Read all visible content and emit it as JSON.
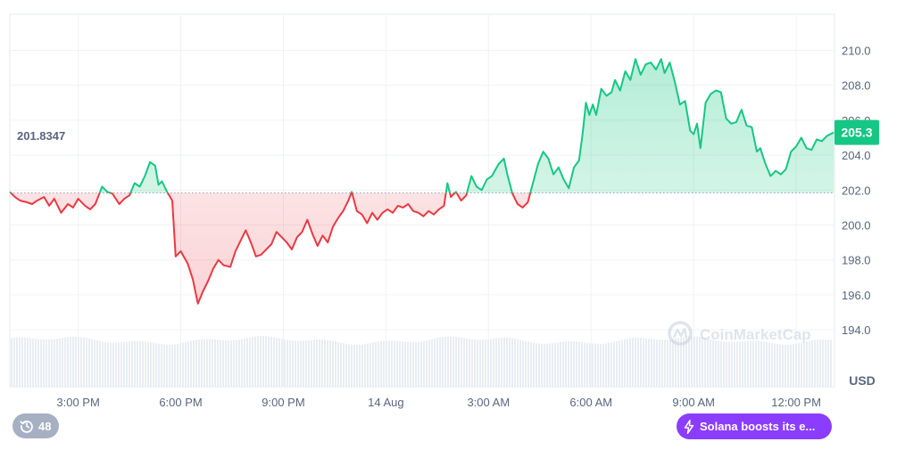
{
  "colors": {
    "up": "#16c784",
    "down": "#ea3943",
    "price_tag_bg": "#16c784",
    "news_pill_bg": "#8b3dff",
    "history_badge_bg": "#a6b0c3",
    "grid": "#eff2f5",
    "axis_text": "#58667e"
  },
  "watermark": "CoinMarketCap",
  "history_badge": {
    "icon": "history-icon",
    "count": "48"
  },
  "news_pill": {
    "icon": "lightning-icon",
    "label": "Solana boosts its e..."
  },
  "chart_data": {
    "type": "area",
    "baseline": 201.8347,
    "baseline_label": "201.8347",
    "current_price_label": "205.3",
    "currency_label": "USD",
    "ylim": [
      193.0,
      211.5
    ],
    "y_ticks": [
      194.0,
      196.0,
      198.0,
      200.0,
      202.0,
      204.0,
      206.0,
      208.0,
      210.0
    ],
    "y_tick_labels": [
      "194.0",
      "196.0",
      "198.0",
      "200.0",
      "202.0",
      "204.0",
      "206.0",
      "208.0",
      "210.0"
    ],
    "x_range_hours": [
      13.0,
      37.12
    ],
    "x_ticks": [
      {
        "label": "3:00 PM",
        "hour": 15
      },
      {
        "label": "6:00 PM",
        "hour": 18
      },
      {
        "label": "9:00 PM",
        "hour": 21
      },
      {
        "label": "14 Aug",
        "hour": 24
      },
      {
        "label": "3:00 AM",
        "hour": 27
      },
      {
        "label": "6:00 AM",
        "hour": 30
      },
      {
        "label": "9:00 AM",
        "hour": 33
      },
      {
        "label": "12:00 PM",
        "hour": 36
      }
    ],
    "series": [
      {
        "points": [
          [
            13.0,
            201.9
          ],
          [
            13.15,
            201.6
          ],
          [
            13.3,
            201.4
          ],
          [
            13.5,
            201.3
          ],
          [
            13.65,
            201.2
          ],
          [
            13.8,
            201.4
          ],
          [
            14.0,
            201.6
          ],
          [
            14.15,
            201.1
          ],
          [
            14.3,
            201.5
          ],
          [
            14.5,
            200.7
          ],
          [
            14.7,
            201.2
          ],
          [
            14.85,
            201.0
          ],
          [
            15.0,
            201.5
          ],
          [
            15.2,
            201.1
          ],
          [
            15.35,
            200.9
          ],
          [
            15.5,
            201.2
          ],
          [
            15.7,
            202.2
          ],
          [
            15.85,
            201.9
          ],
          [
            16.0,
            201.8
          ],
          [
            16.2,
            201.2
          ],
          [
            16.35,
            201.5
          ],
          [
            16.5,
            201.7
          ],
          [
            16.65,
            202.4
          ],
          [
            16.8,
            202.2
          ],
          [
            16.95,
            202.8
          ],
          [
            17.1,
            203.6
          ],
          [
            17.25,
            203.4
          ],
          [
            17.35,
            202.3
          ],
          [
            17.45,
            202.5
          ],
          [
            17.6,
            201.9
          ],
          [
            17.75,
            201.4
          ],
          [
            17.85,
            198.2
          ],
          [
            18.0,
            198.5
          ],
          [
            18.2,
            197.8
          ],
          [
            18.35,
            196.9
          ],
          [
            18.5,
            195.5
          ],
          [
            18.65,
            196.2
          ],
          [
            18.8,
            196.8
          ],
          [
            18.95,
            197.5
          ],
          [
            19.1,
            198.0
          ],
          [
            19.25,
            197.7
          ],
          [
            19.45,
            197.6
          ],
          [
            19.6,
            198.5
          ],
          [
            19.75,
            199.1
          ],
          [
            19.9,
            199.7
          ],
          [
            20.05,
            199.0
          ],
          [
            20.2,
            198.2
          ],
          [
            20.35,
            198.3
          ],
          [
            20.5,
            198.6
          ],
          [
            20.65,
            198.9
          ],
          [
            20.8,
            199.6
          ],
          [
            20.95,
            199.3
          ],
          [
            21.1,
            199.0
          ],
          [
            21.25,
            198.6
          ],
          [
            21.4,
            199.3
          ],
          [
            21.55,
            199.6
          ],
          [
            21.7,
            200.3
          ],
          [
            21.85,
            199.5
          ],
          [
            22.0,
            198.8
          ],
          [
            22.15,
            199.4
          ],
          [
            22.3,
            199.0
          ],
          [
            22.45,
            199.9
          ],
          [
            22.6,
            200.4
          ],
          [
            22.75,
            200.8
          ],
          [
            22.9,
            201.4
          ],
          [
            23.0,
            201.9
          ],
          [
            23.15,
            200.8
          ],
          [
            23.3,
            200.6
          ],
          [
            23.45,
            200.1
          ],
          [
            23.6,
            200.7
          ],
          [
            23.75,
            200.3
          ],
          [
            23.9,
            200.7
          ],
          [
            24.05,
            200.9
          ],
          [
            24.2,
            200.7
          ],
          [
            24.35,
            201.1
          ],
          [
            24.5,
            201.0
          ],
          [
            24.65,
            201.2
          ],
          [
            24.8,
            200.8
          ],
          [
            24.95,
            200.7
          ],
          [
            25.1,
            200.5
          ],
          [
            25.25,
            200.8
          ],
          [
            25.4,
            200.6
          ],
          [
            25.55,
            200.9
          ],
          [
            25.7,
            201.1
          ],
          [
            25.8,
            202.4
          ],
          [
            25.9,
            201.6
          ],
          [
            26.05,
            201.9
          ],
          [
            26.2,
            201.4
          ],
          [
            26.35,
            201.7
          ],
          [
            26.5,
            202.8
          ],
          [
            26.65,
            202.2
          ],
          [
            26.8,
            202.0
          ],
          [
            26.95,
            202.6
          ],
          [
            27.1,
            202.8
          ],
          [
            27.3,
            203.5
          ],
          [
            27.45,
            203.8
          ],
          [
            27.55,
            202.9
          ],
          [
            27.7,
            201.8
          ],
          [
            27.85,
            201.2
          ],
          [
            28.0,
            201.0
          ],
          [
            28.15,
            201.3
          ],
          [
            28.3,
            202.4
          ],
          [
            28.45,
            203.5
          ],
          [
            28.6,
            204.2
          ],
          [
            28.75,
            203.8
          ],
          [
            28.9,
            202.9
          ],
          [
            29.05,
            203.3
          ],
          [
            29.2,
            202.6
          ],
          [
            29.35,
            202.1
          ],
          [
            29.5,
            203.3
          ],
          [
            29.65,
            203.7
          ],
          [
            29.75,
            205.2
          ],
          [
            29.85,
            207.0
          ],
          [
            29.95,
            206.3
          ],
          [
            30.05,
            206.9
          ],
          [
            30.15,
            206.3
          ],
          [
            30.3,
            207.8
          ],
          [
            30.45,
            207.4
          ],
          [
            30.6,
            207.6
          ],
          [
            30.7,
            208.3
          ],
          [
            30.85,
            207.7
          ],
          [
            31.0,
            208.8
          ],
          [
            31.15,
            208.3
          ],
          [
            31.3,
            209.5
          ],
          [
            31.45,
            208.6
          ],
          [
            31.6,
            209.2
          ],
          [
            31.75,
            209.3
          ],
          [
            31.9,
            208.9
          ],
          [
            32.05,
            209.5
          ],
          [
            32.15,
            208.7
          ],
          [
            32.3,
            209.3
          ],
          [
            32.45,
            208.2
          ],
          [
            32.6,
            206.9
          ],
          [
            32.75,
            207.1
          ],
          [
            32.9,
            205.4
          ],
          [
            33.0,
            205.2
          ],
          [
            33.1,
            205.8
          ],
          [
            33.2,
            204.4
          ],
          [
            33.35,
            207.0
          ],
          [
            33.5,
            207.5
          ],
          [
            33.65,
            207.7
          ],
          [
            33.8,
            207.6
          ],
          [
            33.95,
            206.1
          ],
          [
            34.1,
            205.8
          ],
          [
            34.25,
            205.9
          ],
          [
            34.4,
            206.6
          ],
          [
            34.55,
            205.7
          ],
          [
            34.7,
            205.6
          ],
          [
            34.85,
            204.2
          ],
          [
            34.95,
            204.4
          ],
          [
            35.1,
            203.5
          ],
          [
            35.25,
            202.8
          ],
          [
            35.4,
            203.1
          ],
          [
            35.55,
            202.9
          ],
          [
            35.7,
            203.2
          ],
          [
            35.85,
            204.2
          ],
          [
            36.0,
            204.5
          ],
          [
            36.15,
            205.0
          ],
          [
            36.3,
            204.4
          ],
          [
            36.45,
            204.3
          ],
          [
            36.6,
            204.9
          ],
          [
            36.75,
            204.8
          ],
          [
            36.9,
            205.1
          ],
          [
            37.1,
            205.3
          ]
        ]
      }
    ]
  }
}
